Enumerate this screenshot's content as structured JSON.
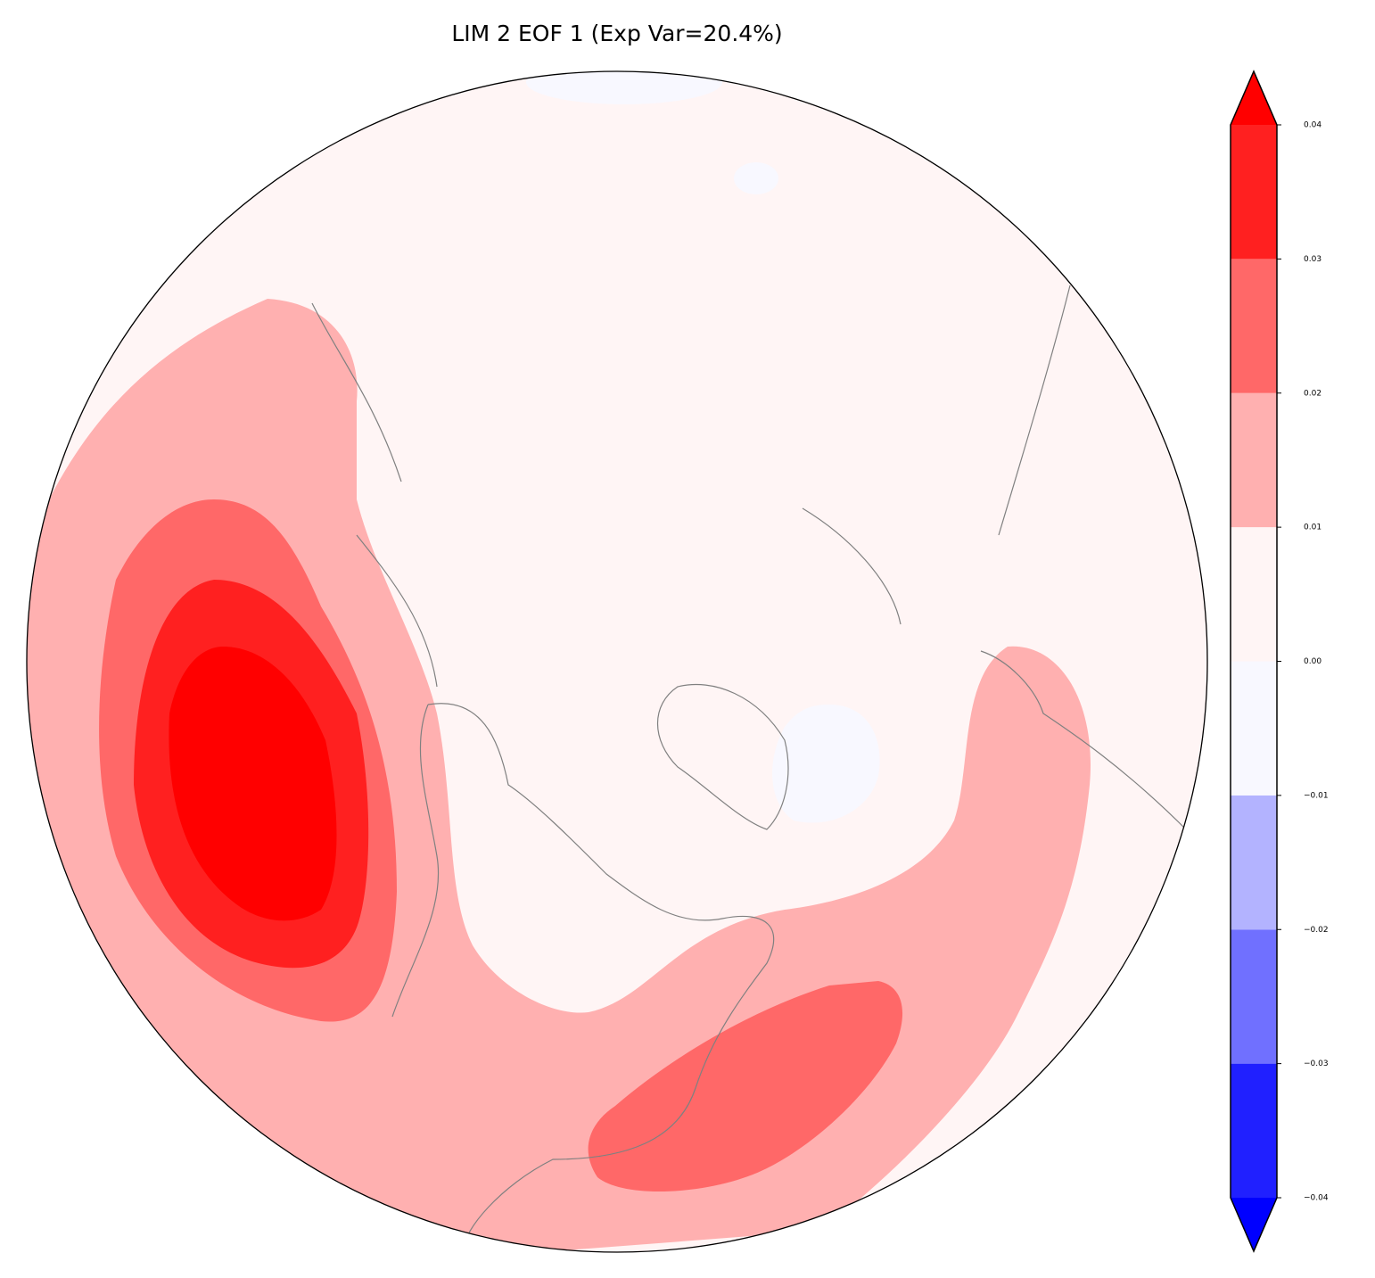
{
  "chart_data": {
    "type": "contour-map",
    "title": "LIM 2 EOF 1 (Exp Var=20.4%)",
    "colorbar": {
      "lim": [
        -0.04,
        0.04
      ],
      "ticks": [
        {
          "value": -0.04,
          "label": "−0.04"
        },
        {
          "value": -0.03,
          "label": "−0.03"
        },
        {
          "value": -0.02,
          "label": "−0.02"
        },
        {
          "value": -0.01,
          "label": "−0.01"
        },
        {
          "value": 0,
          "label": "0.00"
        },
        0.01,
        0.02,
        0.03,
        0.04
      ],
      "colors": [
        "#2020ff",
        "#7070ff",
        "#b3b3ff",
        "#f8f8ff",
        "#fff5f5",
        "#ffb0b0",
        "#ff6868",
        "#ff2020"
      ],
      "under_color": "#0000ff",
      "over_color": "#ff0000"
    }
  }
}
